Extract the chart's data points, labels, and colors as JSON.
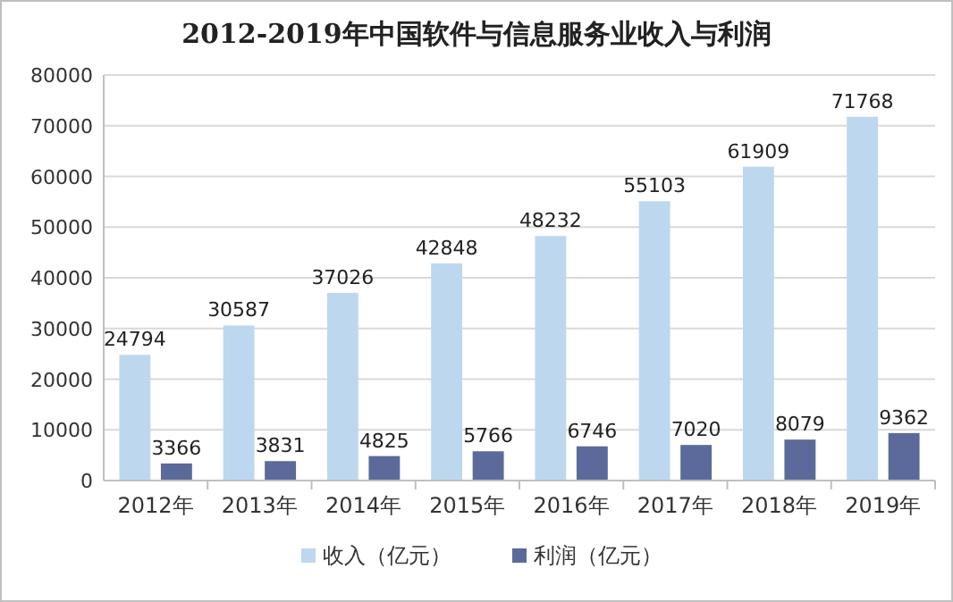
{
  "chart_data": {
    "type": "bar",
    "title": "2012-2019年中国软件与信息服务业收入与利润",
    "categories": [
      "2012年",
      "2013年",
      "2014年",
      "2015年",
      "2016年",
      "2017年",
      "2018年",
      "2019年"
    ],
    "series": [
      {
        "name": "收入（亿元）",
        "color": "#bdd7ee",
        "values": [
          24794,
          30587,
          37026,
          42848,
          48232,
          55103,
          61909,
          71768
        ]
      },
      {
        "name": "利润（亿元）",
        "color": "#5b6a9a",
        "values": [
          3366,
          3831,
          4825,
          5766,
          6746,
          7020,
          8079,
          9362
        ]
      }
    ],
    "ylim": [
      0,
      80000
    ],
    "yticks": [
      0,
      10000,
      20000,
      30000,
      40000,
      50000,
      60000,
      70000,
      80000
    ],
    "grid": "y",
    "legend": "bottom",
    "data_labels": true
  }
}
